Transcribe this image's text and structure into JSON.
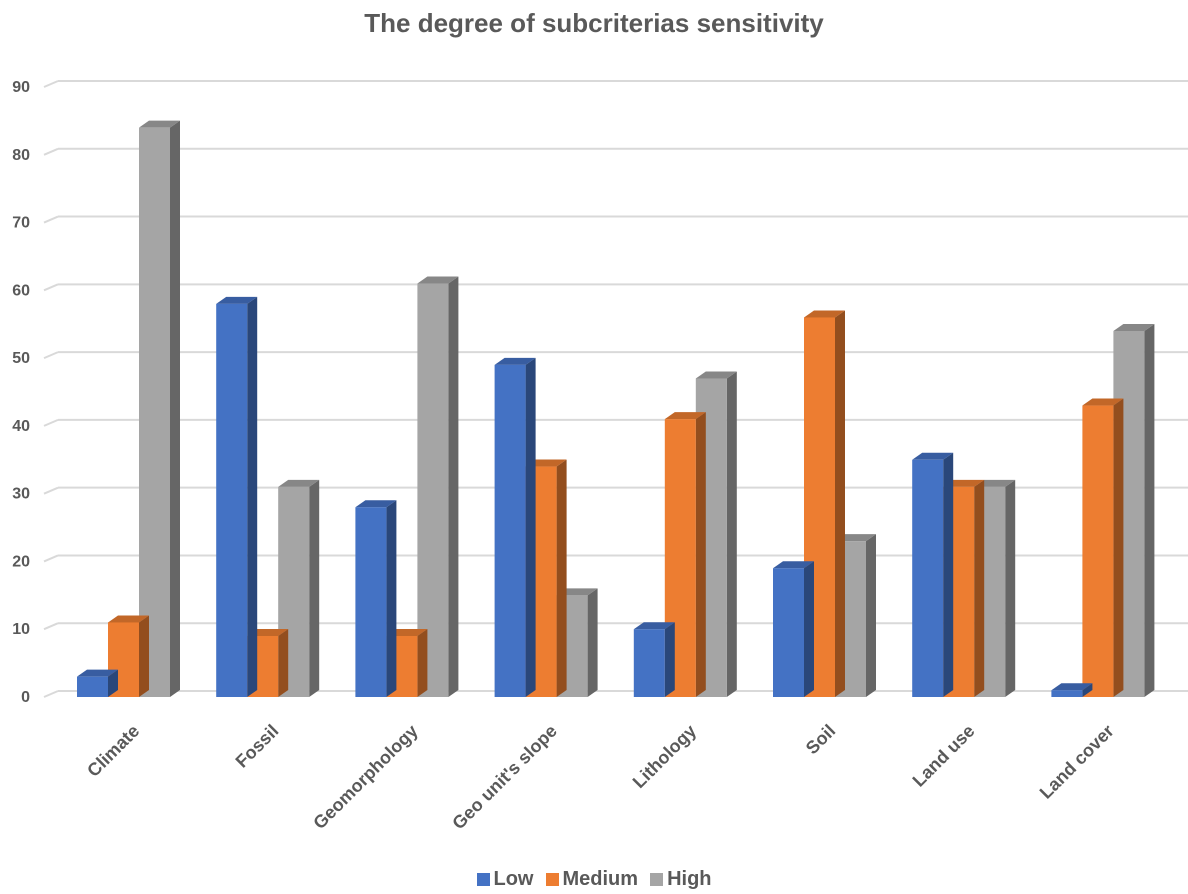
{
  "chart_data": {
    "type": "bar",
    "title": "The degree of subcriterias sensitivity",
    "categories": [
      "Climate",
      "Fossil",
      "Geomorphology",
      "Geo unit's slope",
      "Lithology",
      "Soil",
      "Land use",
      "Land cover"
    ],
    "series": [
      {
        "name": "Low",
        "color": "#4472c4",
        "values": [
          3,
          58,
          28,
          49,
          10,
          19,
          35,
          1
        ]
      },
      {
        "name": "Medium",
        "color": "#ed7d31",
        "values": [
          11,
          9,
          9,
          34,
          41,
          56,
          31,
          43
        ]
      },
      {
        "name": "High",
        "color": "#a5a5a5",
        "values": [
          84,
          31,
          61,
          15,
          47,
          23,
          31,
          54
        ]
      }
    ],
    "ylim": [
      0,
      90
    ],
    "yticks": [
      0,
      10,
      20,
      30,
      40,
      50,
      60,
      70,
      80,
      90
    ],
    "grid": true,
    "legend_position": "bottom",
    "style": "3d-clustered-column"
  }
}
